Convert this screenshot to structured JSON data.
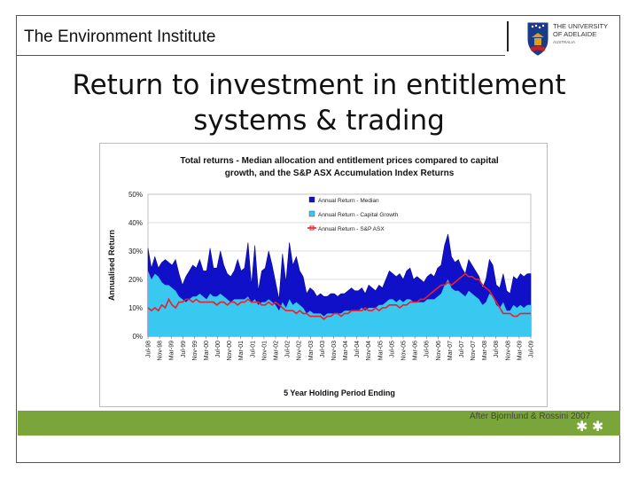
{
  "header": {
    "institute": "The Environment Institute",
    "logo_text_line1": "THE UNIVERSITY",
    "logo_text_line2": "OF ADELAIDE",
    "logo_text_line3": "AUSTRALIA"
  },
  "slide": {
    "title_line1": "Return to investment in entitlement",
    "title_line2": "systems & trading",
    "citation": "After Bjornlund & Rossini 2007"
  },
  "colors": {
    "median": "#1010c8",
    "capital_growth": "#39c8f0",
    "sp_asx": "#e8202a",
    "footer_band": "#7aa53a"
  },
  "chart_data": {
    "type": "area",
    "title_line1": "Total returns - Median allocation and entitlement prices compared to capital",
    "title_line2": "growth, and the S&P ASX Accumulation Index Returns",
    "xlabel": "5 Year Holding Period Ending",
    "ylabel": "Annualised Return",
    "ylim": [
      0,
      50
    ],
    "yticks": [
      "0%",
      "10%",
      "20%",
      "30%",
      "40%",
      "50%"
    ],
    "grid": true,
    "legend_position": "top-right",
    "x_tick_labels": [
      "Jul-98",
      "Nov-98",
      "Mar-99",
      "Jul-99",
      "Nov-99",
      "Mar-00",
      "Jul-00",
      "Nov-00",
      "Mar-01",
      "Jul-01",
      "Nov-01",
      "Mar-02",
      "Jul-02",
      "Nov-02",
      "Mar-03",
      "Jul-03",
      "Nov-03",
      "Mar-04",
      "Jul-04",
      "Nov-04",
      "Mar-05",
      "Jul-05",
      "Nov-05",
      "Mar-06",
      "Jul-06",
      "Nov-06",
      "Mar-07",
      "Jul-07",
      "Nov-07",
      "Mar-08",
      "Jul-08",
      "Nov-08",
      "Mar-09",
      "Jul-09"
    ],
    "series": [
      {
        "name": "Annual Return - Median",
        "values": [
          31,
          24,
          28,
          24,
          26,
          27,
          26,
          25,
          27,
          22,
          18,
          21,
          23,
          25,
          24,
          27,
          23,
          23,
          31,
          24,
          24,
          30,
          25,
          22,
          21,
          23,
          27,
          23,
          24,
          33,
          18,
          32,
          16,
          23,
          24,
          30,
          25,
          19,
          13,
          29,
          19,
          33,
          25,
          28,
          23,
          21,
          15,
          17,
          16,
          14,
          15,
          14,
          14,
          15,
          15,
          14,
          15,
          15,
          16,
          17,
          16,
          16,
          17,
          15,
          18,
          17,
          16,
          18,
          17,
          20,
          23,
          22,
          21,
          22,
          20,
          23,
          24,
          20,
          21,
          20,
          19,
          21,
          22,
          21,
          24,
          25,
          32,
          36,
          28,
          26,
          27,
          24,
          22,
          27,
          25,
          23,
          21,
          17,
          20,
          27,
          25,
          18,
          17,
          22,
          16,
          15,
          21,
          20,
          22,
          21,
          22,
          22
        ]
      },
      {
        "name": "Annual Return - Capital Growth",
        "values": [
          23,
          20,
          22,
          21,
          19,
          18,
          18,
          17,
          16,
          14,
          13,
          12,
          13,
          14,
          14,
          15,
          14,
          13,
          15,
          14,
          14,
          15,
          14,
          13,
          12,
          13,
          13,
          13,
          13,
          14,
          12,
          13,
          11,
          12,
          12,
          13,
          12,
          11,
          9,
          12,
          10,
          13,
          11,
          12,
          11,
          10,
          8,
          9,
          8,
          8,
          8,
          7,
          8,
          8,
          8,
          8,
          8,
          9,
          9,
          9,
          9,
          9,
          10,
          9,
          10,
          10,
          10,
          11,
          11,
          12,
          13,
          13,
          12,
          13,
          12,
          13,
          13,
          12,
          12,
          12,
          12,
          13,
          13,
          13,
          14,
          15,
          18,
          20,
          17,
          16,
          16,
          15,
          14,
          16,
          15,
          14,
          13,
          11,
          12,
          15,
          14,
          11,
          10,
          12,
          9,
          9,
          11,
          10,
          11,
          10,
          11,
          11
        ]
      },
      {
        "name": "Annual Return - S&P ASX",
        "values": [
          10,
          9,
          10,
          9,
          11,
          10,
          13,
          11,
          10,
          12,
          12,
          13,
          13,
          12,
          13,
          12,
          12,
          12,
          12,
          12,
          11,
          12,
          12,
          11,
          12,
          12,
          11,
          12,
          12,
          13,
          12,
          12,
          12,
          11,
          11,
          12,
          11,
          12,
          11,
          10,
          9,
          9,
          9,
          8,
          9,
          8,
          8,
          7,
          7,
          7,
          7,
          6,
          7,
          7,
          8,
          8,
          7,
          8,
          8,
          9,
          9,
          9,
          9,
          10,
          9,
          9,
          10,
          9,
          10,
          10,
          11,
          11,
          11,
          10,
          11,
          11,
          12,
          12,
          12,
          13,
          13,
          14,
          15,
          16,
          17,
          18,
          18,
          19,
          18,
          19,
          20,
          21,
          22,
          21,
          21,
          20,
          20,
          18,
          17,
          16,
          14,
          12,
          10,
          8,
          8,
          8,
          7,
          7,
          8,
          8,
          8,
          8
        ]
      }
    ]
  }
}
